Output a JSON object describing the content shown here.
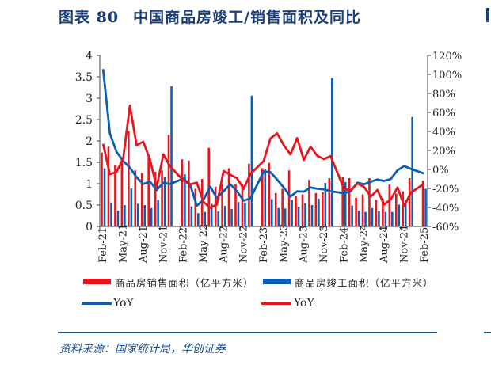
{
  "figure": {
    "label": "图表 80",
    "title": "中国商品房竣工/销售面积及同比",
    "source": "资料来源：国家统计局，华创证券"
  },
  "chart_data": {
    "type": "bar+line",
    "categories": [
      "Feb-21",
      "Mar-21",
      "Apr-21",
      "May-21",
      "Jun-21",
      "Jul-21",
      "Aug-21",
      "Sep-21",
      "Oct-21",
      "Nov-21",
      "Dec-21",
      "Jan-22",
      "Feb-22",
      "Mar-22",
      "Apr-22",
      "May-22",
      "Jun-22",
      "Jul-22",
      "Aug-22",
      "Sep-22",
      "Oct-22",
      "Nov-22",
      "Dec-22",
      "Jan-23",
      "Feb-23",
      "Mar-23",
      "Apr-23",
      "May-23",
      "Jun-23",
      "Jul-23",
      "Aug-23",
      "Sep-23",
      "Oct-23",
      "Nov-23",
      "Dec-23",
      "Jan-24",
      "Feb-24",
      "Mar-24",
      "Apr-24",
      "May-24",
      "Jun-24",
      "Jul-24",
      "Aug-24",
      "Sep-24",
      "Oct-24",
      "Nov-24",
      "Dec-24",
      "Jan-25",
      "Feb-25"
    ],
    "x_tick_labels": [
      "Feb-21",
      "May-21",
      "Aug-21",
      "Nov-21",
      "Feb-22",
      "May-22",
      "Aug-22",
      "Nov-22",
      "Feb-23",
      "May-23",
      "Aug-23",
      "Nov-23",
      "Feb-24",
      "May-24",
      "Aug-24",
      "Nov-24",
      "Feb-25"
    ],
    "y_left": {
      "range": [
        0,
        4
      ],
      "ticks": [
        "0",
        "0.5",
        "1",
        "1.5",
        "2",
        "2.5",
        "3",
        "3.5",
        "4"
      ]
    },
    "y_right": {
      "range": [
        -60,
        120
      ],
      "ticks": [
        "-60%",
        "-40%",
        "-20%",
        "0%",
        "20%",
        "40%",
        "60%",
        "80%",
        "100%",
        "120%"
      ]
    },
    "legend_position": "bottom",
    "grid": false,
    "series": [
      {
        "name": "商品房销售面积（亿平方米）",
        "kind": "bar",
        "axis": "left",
        "color": "#e8141e",
        "values": [
          1.73,
          1.87,
          1.44,
          1.57,
          2.23,
          1.31,
          1.25,
          1.62,
          1.28,
          1.31,
          2.14,
          null,
          1.57,
          1.54,
          0.88,
          1.11,
          1.84,
          0.93,
          0.98,
          1.36,
          0.99,
          1.0,
          1.47,
          null,
          1.36,
          1.49,
          0.78,
          0.88,
          1.31,
          0.71,
          0.75,
          1.09,
          0.78,
          0.8,
          1.13,
          null,
          1.15,
          1.13,
          0.67,
          0.75,
          1.13,
          0.62,
          0.65,
          0.98,
          0.77,
          0.82,
          1.13,
          null,
          1.07
        ]
      },
      {
        "name": "商品房竣工面积（亿平方米）",
        "kind": "bar",
        "axis": "left",
        "color": "#0a5fb4",
        "values": [
          1.36,
          0.56,
          0.37,
          0.5,
          0.89,
          0.53,
          0.5,
          0.43,
          0.62,
          1.15,
          3.28,
          null,
          1.22,
          0.47,
          0.31,
          0.34,
          0.53,
          0.35,
          0.48,
          0.41,
          0.57,
          0.55,
          3.06,
          null,
          1.33,
          0.64,
          0.43,
          0.42,
          0.62,
          0.46,
          0.54,
          0.5,
          0.65,
          1.02,
          3.47,
          null,
          1.04,
          0.49,
          0.37,
          0.34,
          0.43,
          0.36,
          0.34,
          0.34,
          0.51,
          0.62,
          2.56,
          null,
          0.88
        ]
      },
      {
        "name": "YoY",
        "kind": "line",
        "axis": "right",
        "color": "#0a5fb4",
        "unit": "%",
        "values": [
          105.6,
          38,
          18.6,
          8.9,
          1.9,
          -8.3,
          -15.3,
          -12.8,
          -21.7,
          -13.9,
          -15.3,
          null,
          -9.7,
          -16.1,
          -38.3,
          -31.9,
          -18.1,
          -30,
          -23,
          -15.6,
          -23,
          -32.8,
          -30.6,
          null,
          -2.2,
          -2.8,
          -10.6,
          -19,
          -28.6,
          -23,
          -23.4,
          -19,
          -20.3,
          -21,
          -23,
          null,
          -25,
          -23,
          -13.9,
          -15.6,
          -12.8,
          -10.6,
          -12.2,
          -10,
          -0.8,
          3.6,
          0.6,
          null,
          -4.4
        ]
      },
      {
        "name": "YoY",
        "kind": "line",
        "axis": "right",
        "color": "#e8141e",
        "unit": "%",
        "values": [
          26.9,
          -5,
          -2.8,
          11.7,
          67.2,
          25.6,
          29.2,
          10.3,
          -18.9,
          15.8,
          3.3,
          null,
          -11.7,
          -15.6,
          -13.9,
          -34.2,
          -40.3,
          -37,
          -1.7,
          -5.6,
          -9.2,
          -20.3,
          -5,
          null,
          8.9,
          32.5,
          38,
          25.6,
          15.8,
          33,
          10,
          24,
          14.4,
          10.8,
          14,
          null,
          -20.5,
          -22,
          -14.8,
          -18.3,
          -28.6,
          -21.7,
          -37,
          -31.4,
          -19,
          -38.3,
          -24.4,
          null,
          -14.8
        ]
      }
    ]
  },
  "legend": [
    {
      "label": "商品房销售面积（亿平方米）",
      "color": "#e8141e",
      "kind": "bar"
    },
    {
      "label": "商品房竣工面积（亿平方米）",
      "color": "#0a5fb4",
      "kind": "bar"
    },
    {
      "label": "YoY",
      "color": "#0a5fb4",
      "kind": "line"
    },
    {
      "label": "YoY",
      "color": "#e8141e",
      "kind": "line"
    }
  ],
  "colors": {
    "title": "#1b3f7a",
    "divider": "#1d4e89",
    "source": "#1d4e89"
  }
}
